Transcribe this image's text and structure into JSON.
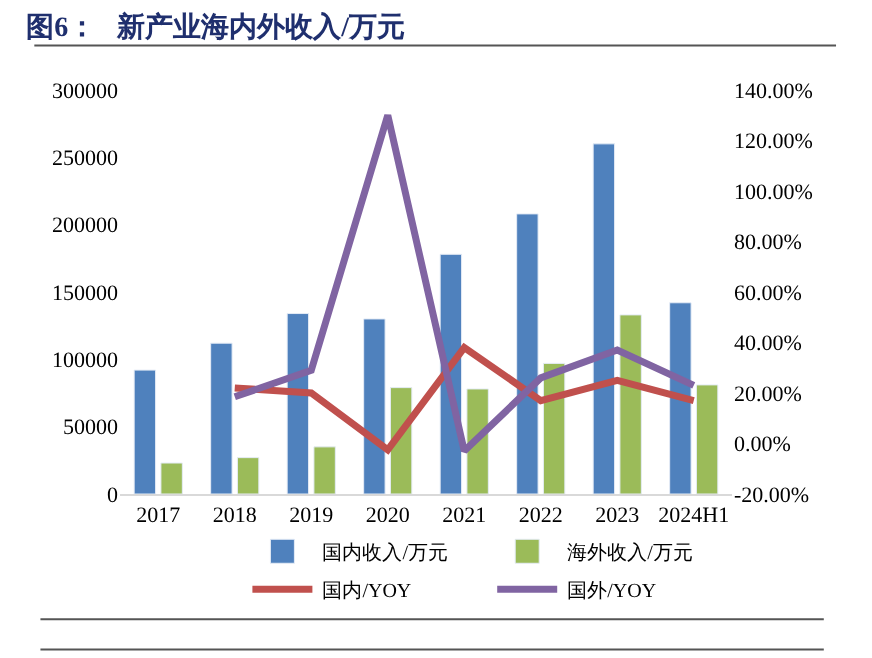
{
  "chart_data": {
    "type": "bar",
    "title": "图6：   新产业海内外收入/万元",
    "categories": [
      "2017",
      "2018",
      "2019",
      "2020",
      "2021",
      "2022",
      "2023",
      "2024H1"
    ],
    "series": [
      {
        "name": "国内收入/万元",
        "color": "#4f81bd",
        "values": [
          92000,
          112000,
          134000,
          130000,
          178000,
          208000,
          260000,
          142000
        ]
      },
      {
        "name": "海外收入/万元",
        "color": "#9bbb59",
        "values": [
          23000,
          27000,
          35000,
          79000,
          78000,
          97000,
          133000,
          81000
        ]
      },
      {
        "name": "国内/YOY",
        "color": "#c0504d",
        "type": "line",
        "axis": "y2",
        "values": [
          null,
          22,
          20,
          -2.5,
          38,
          17,
          25,
          17
        ]
      },
      {
        "name": "国外/YOY",
        "color": "#8064a2",
        "type": "line",
        "axis": "y2",
        "values": [
          null,
          18.5,
          29,
          130,
          -3,
          26,
          37,
          23
        ]
      }
    ],
    "ylim": [
      0,
      300000
    ],
    "yticks": [
      0,
      50000,
      100000,
      150000,
      200000,
      250000,
      300000
    ],
    "y2lim": [
      -20,
      140
    ],
    "y2ticks": [
      {
        "value": -20,
        "label": "-20.00%"
      },
      {
        "value": 0,
        "label": "0.00%"
      },
      {
        "value": 20,
        "label": "20.00%"
      },
      {
        "value": 40,
        "label": "40.00%"
      },
      {
        "value": 60,
        "label": "60.00%"
      },
      {
        "value": 80,
        "label": "80.00%"
      },
      {
        "value": 100,
        "label": "100.00%"
      },
      {
        "value": 120,
        "label": "120.00%"
      },
      {
        "value": 140,
        "label": "140.00%"
      }
    ],
    "legend": "bottom",
    "marker": "none",
    "line_style": "solid"
  }
}
